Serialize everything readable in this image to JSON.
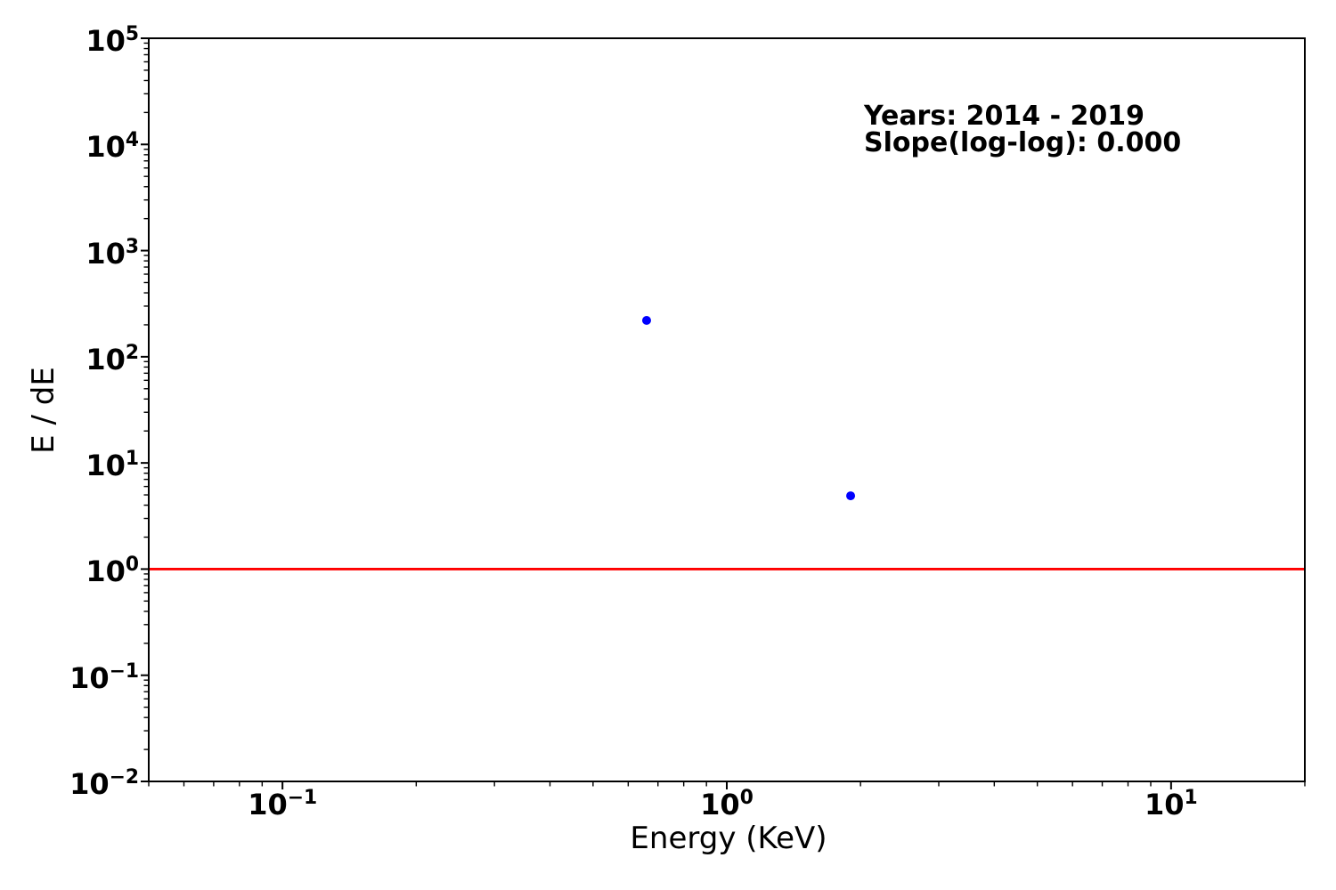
{
  "figure": {
    "background": "#ffffff",
    "spine_color": "#000000"
  },
  "chart_data": {
    "type": "scatter",
    "title": "",
    "xlabel": "Energy (KeV)",
    "ylabel": "E / dE",
    "x_scale": "log",
    "y_scale": "log",
    "xlim": [
      0.05,
      20
    ],
    "ylim": [
      0.01,
      100000
    ],
    "grid": false,
    "legend_position": "none",
    "x_major_ticks": [
      {
        "value": 0.1,
        "label": "10^−1"
      },
      {
        "value": 1,
        "label": "10^0"
      },
      {
        "value": 10,
        "label": "10^1"
      }
    ],
    "y_major_ticks": [
      {
        "value": 0.01,
        "label": "10^−2"
      },
      {
        "value": 0.1,
        "label": "10^−1"
      },
      {
        "value": 1,
        "label": "10^0"
      },
      {
        "value": 10,
        "label": "10^1"
      },
      {
        "value": 100,
        "label": "10^2"
      },
      {
        "value": 1000,
        "label": "10^3"
      },
      {
        "value": 10000,
        "label": "10^4"
      },
      {
        "value": 100000,
        "label": "10^5"
      }
    ],
    "series": [
      {
        "name": "spectrum-points",
        "marker": "circle",
        "color": "#0000ff",
        "points": [
          {
            "x": 0.66,
            "y": 220
          },
          {
            "x": 1.9,
            "y": 4.9
          }
        ]
      }
    ],
    "reference_line": {
      "y": 1.0,
      "color": "#ff0000",
      "orientation": "horizontal"
    },
    "annotation": {
      "line1": "Years: 2014 - 2019",
      "line2": "Slope(log-log): 0.000"
    }
  }
}
